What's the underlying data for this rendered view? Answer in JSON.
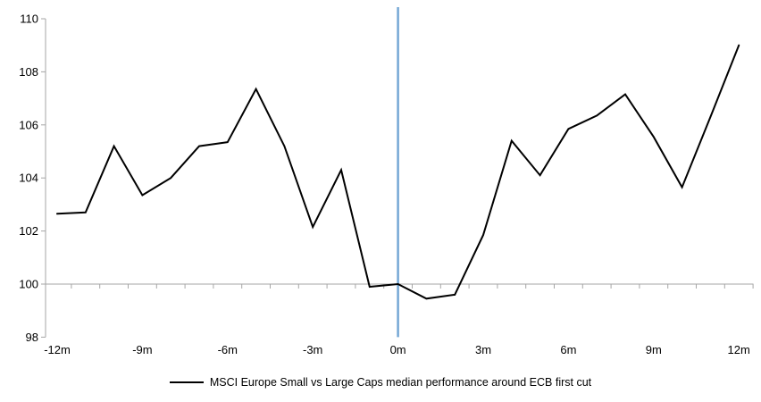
{
  "chart_data": {
    "type": "line",
    "title": "",
    "xlabel": "",
    "ylabel": "",
    "x": [
      -12,
      -11,
      -10,
      -9,
      -8,
      -7,
      -6,
      -5,
      -4,
      -3,
      -2,
      -1,
      0,
      1,
      2,
      3,
      4,
      5,
      6,
      7,
      8,
      9,
      10,
      11,
      12
    ],
    "series": [
      {
        "name": "MSCI Europe Small vs Large Caps median performance around ECB first cut",
        "color": "#000000",
        "values": [
          102.65,
          102.7,
          105.2,
          103.35,
          104.0,
          105.2,
          105.35,
          107.35,
          105.2,
          102.15,
          104.3,
          99.9,
          100.0,
          99.45,
          99.6,
          101.85,
          105.4,
          104.1,
          105.85,
          106.35,
          107.15,
          105.55,
          103.65,
          106.3,
          109.0
        ]
      }
    ],
    "ylim": [
      98,
      110
    ],
    "y_ticks": [
      98,
      100,
      102,
      104,
      106,
      108,
      110
    ],
    "y_tick_labels": [
      "98",
      "100",
      "102",
      "104",
      "106",
      "108",
      "110"
    ],
    "x_tick_months": [
      -12,
      -9,
      -6,
      -3,
      0,
      3,
      6,
      9,
      12
    ],
    "x_tick_labels": [
      "-12m",
      "-9m",
      "-6m",
      "-3m",
      "0m",
      "3m",
      "6m",
      "9m",
      "12m"
    ],
    "baseline_value": 100,
    "event_line": {
      "x": 0,
      "color": "#75A8D5"
    },
    "axis_color": "#A6A6A6",
    "grid": false,
    "legend_position": "bottom"
  },
  "legend": {
    "label": "MSCI Europe Small vs Large Caps median performance around ECB first cut"
  }
}
